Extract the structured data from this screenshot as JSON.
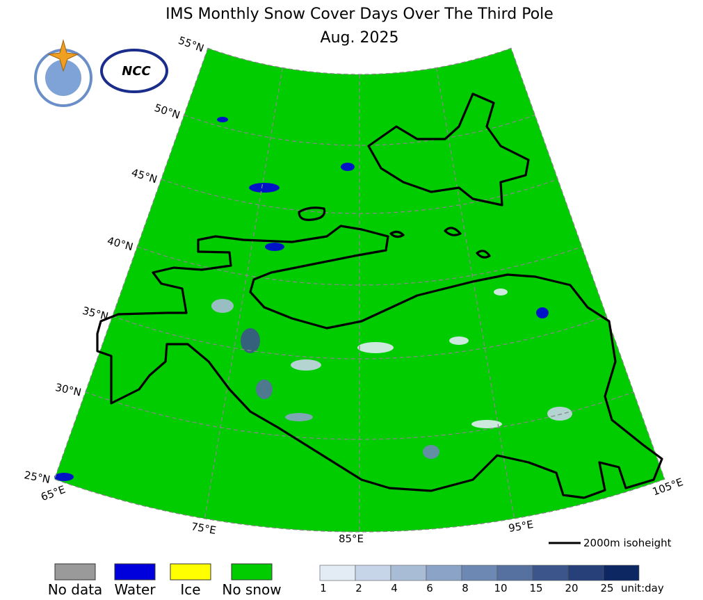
{
  "title": "IMS Monthly Snow Cover Days Over The Third Pole",
  "subtitle": "Aug. 2025",
  "lat_labels": [
    "55°N",
    "50°N",
    "45°N",
    "40°N",
    "35°N",
    "30°N",
    "25°N"
  ],
  "lon_labels": [
    "65°E",
    "75°E",
    "85°E",
    "95°E",
    "105°E"
  ],
  "isoheight_label": "2000m isoheight",
  "legend": [
    {
      "label": "No data",
      "color": "#9a9a9a"
    },
    {
      "label": "Water",
      "color": "#0000dd"
    },
    {
      "label": "Ice",
      "color": "#ffff00"
    },
    {
      "label": "No snow",
      "color": "#00cc00"
    }
  ],
  "colorbar": {
    "ticks": [
      1,
      2,
      4,
      6,
      8,
      10,
      15,
      20,
      25
    ],
    "colors": [
      "#e3ebf5",
      "#c6d5e7",
      "#a8bcd6",
      "#8ba3c6",
      "#6e88b4",
      "#56709f",
      "#3c558a",
      "#27407a",
      "#0d2763"
    ],
    "unit": "unit:day"
  }
}
